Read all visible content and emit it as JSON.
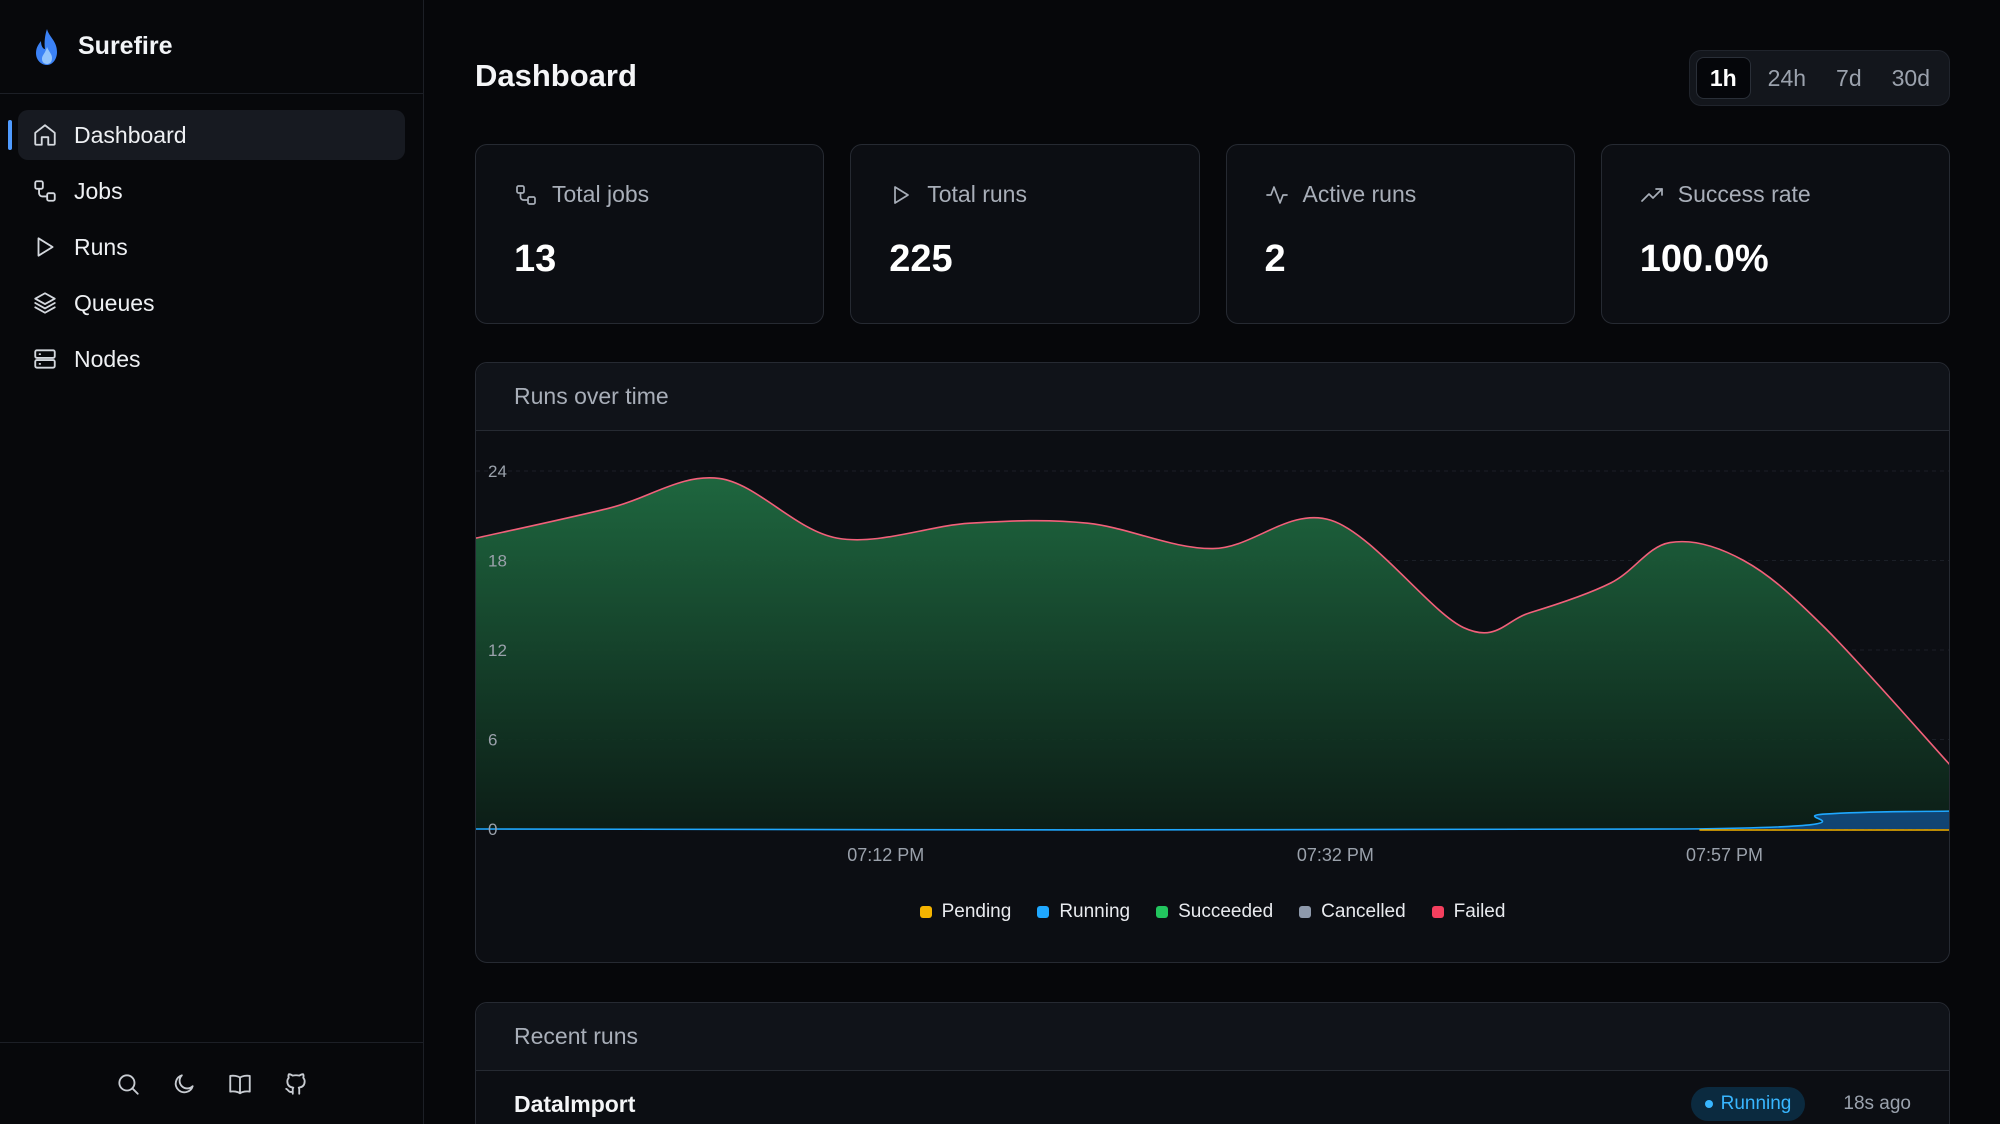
{
  "app": {
    "name": "Surefire"
  },
  "sidebar": {
    "items": [
      {
        "label": "Dashboard",
        "icon": "home-icon",
        "active": true
      },
      {
        "label": "Jobs",
        "icon": "jobs-icon"
      },
      {
        "label": "Runs",
        "icon": "play-icon"
      },
      {
        "label": "Queues",
        "icon": "layers-icon"
      },
      {
        "label": "Nodes",
        "icon": "server-icon"
      }
    ],
    "footer_icons": [
      "search-icon",
      "moon-icon",
      "book-icon",
      "github-icon"
    ]
  },
  "header": {
    "title": "Dashboard",
    "ranges": [
      "1h",
      "24h",
      "7d",
      "30d"
    ],
    "selected_range": "1h"
  },
  "stats": [
    {
      "label": "Total jobs",
      "value": "13",
      "icon": "jobs-icon"
    },
    {
      "label": "Total runs",
      "value": "225",
      "icon": "play-icon"
    },
    {
      "label": "Active runs",
      "value": "2",
      "icon": "activity-icon"
    },
    {
      "label": "Success rate",
      "value": "100.0%",
      "icon": "trending-up-icon"
    }
  ],
  "chart_title": "Runs over time",
  "chart_data": {
    "type": "area",
    "title": "Runs over time",
    "y_ticks": [
      "0",
      "6",
      "12",
      "18",
      "24"
    ],
    "ylim": [
      0,
      24
    ],
    "x_ticks": [
      "07:12 PM",
      "07:32 PM",
      "07:57 PM"
    ],
    "x_tick_positions": [
      0.278,
      0.583,
      0.847
    ],
    "grid": true,
    "legend_placement": "bottom",
    "series": [
      {
        "name": "Pending",
        "color": "#f5b400",
        "x": [
          0,
          1
        ],
        "y": [
          0,
          0
        ]
      },
      {
        "name": "Running",
        "color": "#1fa8ff",
        "x": [
          0,
          0.82,
          0.915,
          1
        ],
        "y": [
          0,
          0,
          1,
          1.2
        ]
      },
      {
        "name": "Succeeded",
        "color": "#22c55e",
        "x": [
          0,
          0.09,
          0.165,
          0.245,
          0.335,
          0.415,
          0.5,
          0.58,
          0.67,
          0.715,
          0.77,
          0.81,
          0.86,
          0.915,
          1
        ],
        "y": [
          19.5,
          21.5,
          23.5,
          19.5,
          20.5,
          20.5,
          18.8,
          20.7,
          13.5,
          14.5,
          16.5,
          19.2,
          18.0,
          13.5,
          4.3
        ]
      },
      {
        "name": "Cancelled",
        "color": "#8e99ab",
        "x": [
          0,
          1
        ],
        "y": [
          0,
          0
        ]
      },
      {
        "name": "Failed",
        "color": "#f43f5e",
        "x": [
          0,
          1
        ],
        "y": [
          0,
          0
        ]
      }
    ]
  },
  "recent_title": "Recent runs",
  "recent_runs": [
    {
      "job": "DataImport",
      "status": "Running",
      "ago": "18s ago"
    }
  ]
}
